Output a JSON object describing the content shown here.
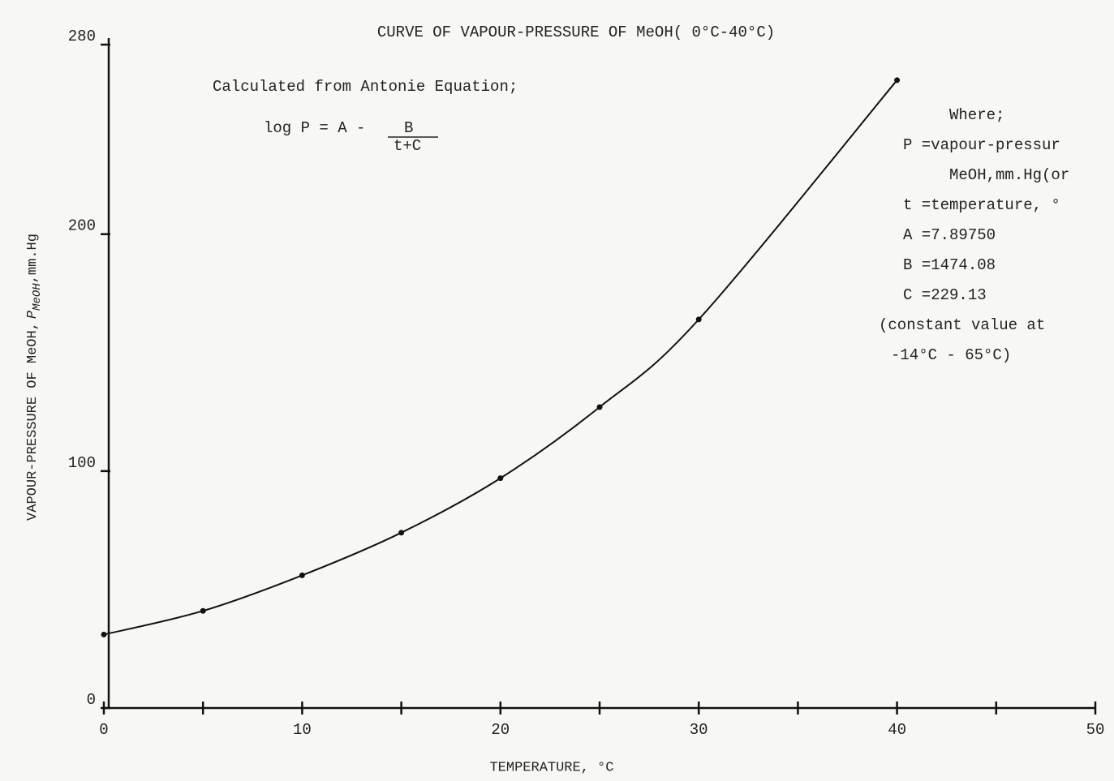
{
  "chart_data": {
    "type": "line",
    "title": "CURVE OF VAPOUR-PRESSURE OF MeOH( 0°C-40°C)",
    "x_label": "TEMPERATURE, °C",
    "y_label": {
      "main": "VAPOUR-PRESSURE OF MeOH,",
      "symbol": "P",
      "subscript": "MeOH",
      "unit": ",mm.Hg"
    },
    "x": [
      0,
      5,
      10,
      15,
      20,
      25,
      30,
      40
    ],
    "series": [
      {
        "color": "#111111",
        "values": [
          31,
          41,
          56,
          74,
          97,
          127,
          164,
          265
        ]
      }
    ],
    "xlim": [
      0,
      50
    ],
    "ylim": [
      0,
      280
    ],
    "xticks": [
      0,
      10,
      20,
      30,
      40,
      50
    ],
    "xminorticks": [
      5,
      15,
      25,
      35,
      45
    ],
    "yticks": [
      0,
      100,
      200,
      280
    ],
    "annotations": {
      "method": "Calculated from Antonie Equation;",
      "equation": {
        "lhs": "log P = A -",
        "numerator": "B",
        "denominator": "t+C"
      },
      "where": [
        "Where;",
        "P =vapour-pressur",
        "MeOH,mm.Hg(or",
        "t =temperature, °",
        "A =7.89750",
        "B =1474.08",
        "C =229.13",
        "(constant value at",
        "-14°C - 65°C)"
      ]
    }
  }
}
